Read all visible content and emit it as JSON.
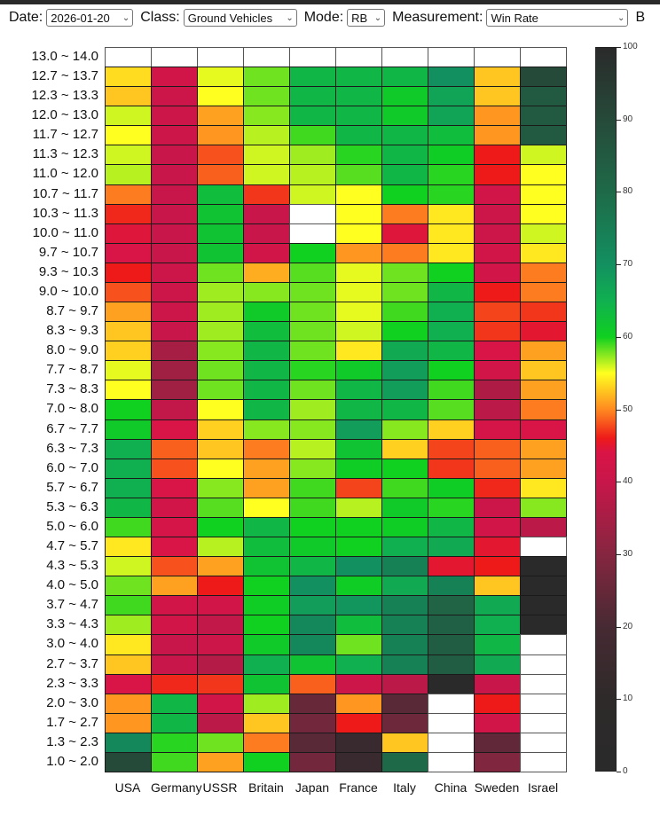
{
  "controls": {
    "date_label": "Date:",
    "date_value": "2026-01-20",
    "class_label": "Class:",
    "class_value": "Ground Vehicles",
    "mode_label": "Mode:",
    "mode_value": "RB",
    "measurement_label": "Measurement:",
    "measurement_value": "Win Rate",
    "truncated_label": "B"
  },
  "colors": {
    "empty": "#ffffff",
    "stops": [
      [
        0,
        "#2a2a2a"
      ],
      [
        10,
        "#2e2a2a"
      ],
      [
        20,
        "#472a33"
      ],
      [
        30,
        "#862640"
      ],
      [
        40,
        "#c8164a"
      ],
      [
        44,
        "#d91446"
      ],
      [
        46,
        "#ee1a1a"
      ],
      [
        50,
        "#ff8a20"
      ],
      [
        55,
        "#ffff20"
      ],
      [
        60,
        "#10d020"
      ],
      [
        65,
        "#10b050"
      ],
      [
        70,
        "#139060"
      ],
      [
        80,
        "#1e6a48"
      ],
      [
        90,
        "#264a3a"
      ],
      [
        100,
        "#2a2a2a"
      ]
    ]
  },
  "chart_data": {
    "type": "heatmap",
    "title": "",
    "measurement": "Win Rate",
    "columns": [
      "USA",
      "Germany",
      "USSR",
      "Britain",
      "Japan",
      "France",
      "Italy",
      "China",
      "Sweden",
      "Israel"
    ],
    "rows": [
      "13.0 ~ 14.0",
      "12.7 ~ 13.7",
      "12.3 ~ 13.3",
      "12.0 ~ 13.0",
      "11.7 ~ 12.7",
      "11.3 ~ 12.3",
      "11.0 ~ 12.0",
      "10.7 ~ 11.7",
      "10.3 ~ 11.3",
      "10.0 ~ 11.0",
      "9.7 ~ 10.7",
      "9.3 ~ 10.3",
      "9.0 ~ 10.0",
      "8.7 ~ 9.7",
      "8.3 ~ 9.3",
      "8.0 ~ 9.0",
      "7.7 ~ 8.7",
      "7.3 ~ 8.3",
      "7.0 ~ 8.0",
      "6.7 ~ 7.7",
      "6.3 ~ 7.3",
      "6.0 ~ 7.0",
      "5.7 ~ 6.7",
      "5.3 ~ 6.3",
      "5.0 ~ 6.0",
      "4.7 ~ 5.7",
      "4.3 ~ 5.3",
      "4.0 ~ 5.0",
      "3.7 ~ 4.7",
      "3.3 ~ 4.3",
      "3.0 ~ 4.0",
      "2.7 ~ 3.7",
      "2.3 ~ 3.3",
      "2.0 ~ 3.0",
      "1.7 ~ 2.7",
      "1.3 ~ 2.3",
      "1.0 ~ 2.0"
    ],
    "values": [
      [
        null,
        null,
        null,
        null,
        null,
        null,
        null,
        null,
        null,
        null
      ],
      [
        53.5,
        42,
        55.5,
        58,
        64,
        64,
        64,
        70,
        52.5,
        90
      ],
      [
        52.5,
        41,
        55,
        58,
        64,
        64,
        61,
        67,
        52.5,
        85
      ],
      [
        56,
        41,
        51,
        57.5,
        64,
        64,
        61,
        67,
        50.5,
        85
      ],
      [
        55,
        41,
        50.5,
        56.5,
        59,
        64,
        64,
        63,
        50.5,
        85
      ],
      [
        56,
        40,
        48,
        56,
        57,
        59.5,
        64,
        60.5,
        46,
        56
      ],
      [
        56.5,
        40,
        48.5,
        56,
        56.5,
        58.5,
        64,
        59.5,
        46,
        55
      ],
      [
        49.5,
        40,
        63,
        47,
        56,
        55,
        60,
        59.5,
        42,
        55
      ],
      [
        46.5,
        40,
        62,
        40,
        null,
        55,
        49.5,
        54,
        41,
        55
      ],
      [
        44.5,
        40,
        62,
        40,
        null,
        55,
        44.5,
        54,
        41,
        56
      ],
      [
        44,
        40,
        62,
        42,
        60,
        50.5,
        49.5,
        54,
        42,
        54
      ],
      [
        46,
        41,
        58,
        51.5,
        58.5,
        55.5,
        58,
        60,
        42,
        49.5
      ],
      [
        48,
        41,
        57,
        57.5,
        58,
        55.5,
        58,
        64,
        46,
        49.5
      ],
      [
        51,
        41,
        57,
        61,
        58,
        55.5,
        59,
        65,
        47.5,
        47
      ],
      [
        52.5,
        40,
        57,
        63,
        58,
        56,
        60,
        65,
        47,
        45
      ],
      [
        53,
        35,
        57.5,
        64,
        58,
        54,
        66,
        64,
        44,
        51
      ],
      [
        55.5,
        34,
        58,
        64,
        59.5,
        61,
        68,
        60,
        42,
        52.5
      ],
      [
        55,
        34,
        58,
        64,
        58,
        64,
        68,
        59,
        36,
        51
      ],
      [
        60,
        39,
        55,
        64,
        57,
        64,
        64,
        58.5,
        38,
        49.5
      ],
      [
        61,
        44,
        53,
        57.5,
        57.5,
        68,
        57.5,
        53,
        43,
        44
      ],
      [
        65,
        48.5,
        52.5,
        49.5,
        56.5,
        62,
        53,
        47.5,
        48.5,
        51
      ],
      [
        65,
        48,
        55,
        51,
        57.5,
        60.5,
        60,
        47,
        48.5,
        51
      ],
      [
        65,
        44,
        57.5,
        51,
        59,
        47.5,
        59,
        60.5,
        46.5,
        54
      ],
      [
        64,
        42,
        58.5,
        55,
        59,
        56.5,
        61,
        59.5,
        41,
        57.5
      ],
      [
        59,
        43,
        60,
        64,
        60,
        60,
        60.5,
        64,
        42,
        38
      ],
      [
        54,
        44,
        56.5,
        63,
        61,
        60,
        65,
        66,
        45,
        null
      ],
      [
        56,
        48,
        51,
        62,
        64,
        70,
        74,
        45,
        46,
        2
      ],
      [
        58,
        51,
        46,
        60,
        70,
        60.5,
        66,
        74,
        52.5,
        2
      ],
      [
        59,
        42,
        42,
        60.5,
        68,
        69,
        74,
        82,
        66,
        2
      ],
      [
        57,
        42,
        39,
        60,
        72,
        63,
        74,
        83,
        65,
        2
      ],
      [
        54,
        40,
        41,
        61,
        72,
        58,
        74,
        84,
        64,
        null
      ],
      [
        52.5,
        40,
        37,
        65,
        62,
        65,
        74,
        84,
        66,
        null
      ],
      [
        44,
        46.5,
        47,
        62,
        48.5,
        41,
        38,
        2,
        40,
        null
      ],
      [
        50.5,
        64,
        42,
        57,
        25,
        50.5,
        23,
        null,
        46,
        null
      ],
      [
        50.5,
        64,
        38,
        52.5,
        27,
        46,
        26,
        null,
        42,
        null
      ],
      [
        72,
        59.5,
        58,
        49.5,
        23,
        14,
        52.5,
        null,
        24,
        null
      ],
      [
        90,
        59,
        51,
        60,
        27,
        14,
        80,
        null,
        29,
        null
      ]
    ],
    "colorbar": {
      "range": [
        0,
        100
      ],
      "ticks": [
        "0",
        "10",
        "20",
        "30",
        "40",
        "50",
        "60",
        "70",
        "80",
        "90",
        "100"
      ]
    },
    "grid": false,
    "legend": "right"
  }
}
